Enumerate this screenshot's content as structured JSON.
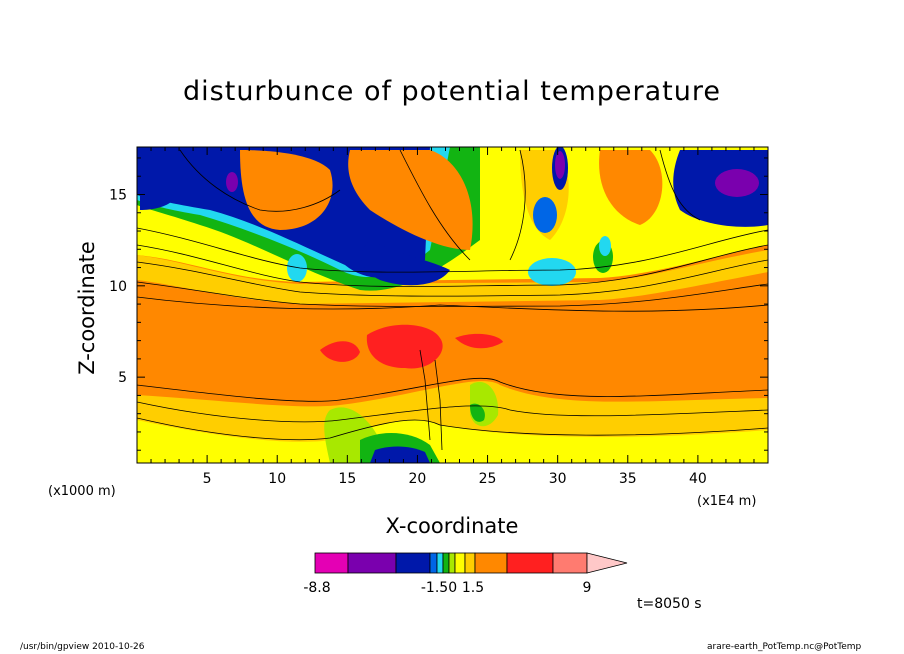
{
  "chart_data": {
    "type": "heatmap",
    "title": "disturbunce of potential temperature",
    "xlabel": "X-coordinate",
    "ylabel": "Z-coordinate",
    "x_unit_left": "(x1000 m)",
    "x_unit_right": "(x1E4 m)",
    "xlim": [
      0,
      45
    ],
    "ylim": [
      0.3,
      17.6
    ],
    "x_ticks": [
      5,
      10,
      15,
      20,
      25,
      30,
      35,
      40
    ],
    "y_ticks": [
      5,
      10,
      15
    ],
    "colorbar": {
      "colors": [
        "#e400b4",
        "#7a00ae",
        "#0018aa",
        "#0066e6",
        "#22d8f0",
        "#12b412",
        "#a8e800",
        "#ffff00",
        "#ffce00",
        "#ff8800",
        "#ff2020",
        "#ff7b70",
        "#ffc8c8"
      ],
      "labels": [
        "-8.8",
        "-1.50",
        "1.5",
        "9"
      ],
      "extend": "max"
    },
    "time_label": "t=8050 s"
  },
  "footer": {
    "left": "/usr/bin/gpview   2010-10-26",
    "right": "arare-earth_PotTemp.nc@PotTemp"
  }
}
